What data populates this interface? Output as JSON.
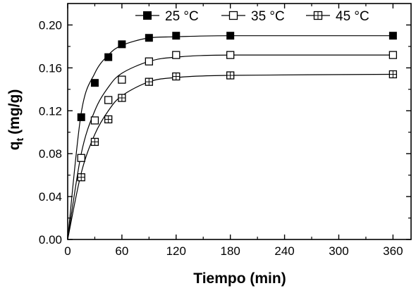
{
  "chart_data": {
    "type": "line",
    "xlabel": "Tiempo (min)",
    "ylabel": {
      "main": "q",
      "sub": "t",
      "unit": "(mg/g)"
    },
    "xlim": [
      0,
      380
    ],
    "ylim": [
      0,
      0.22
    ],
    "xticks": [
      "0",
      "60",
      "120",
      "180",
      "240",
      "300",
      "360"
    ],
    "yticks": [
      "0.00",
      "0.04",
      "0.08",
      "0.12",
      "0.16",
      "0.20"
    ],
    "xtick_values": [
      0,
      60,
      120,
      180,
      240,
      300,
      360
    ],
    "ytick_values": [
      0,
      0.04,
      0.08,
      0.12,
      0.16,
      0.2
    ],
    "grid": false,
    "legend_position": "top-right",
    "series": [
      {
        "name": "25 °C",
        "marker": "filled-square",
        "points": [
          [
            0,
            0
          ],
          [
            15,
            0.114
          ],
          [
            30,
            0.146
          ],
          [
            45,
            0.17
          ],
          [
            60,
            0.182
          ],
          [
            90,
            0.188
          ],
          [
            120,
            0.19
          ],
          [
            180,
            0.19
          ],
          [
            360,
            0.19
          ]
        ],
        "fit": [
          [
            0,
            0
          ],
          [
            15,
            0.118
          ],
          [
            30,
            0.155
          ],
          [
            45,
            0.172
          ],
          [
            60,
            0.181
          ],
          [
            90,
            0.188
          ],
          [
            120,
            0.189
          ],
          [
            180,
            0.19
          ],
          [
            360,
            0.19
          ]
        ]
      },
      {
        "name": "35 °C",
        "marker": "open-square",
        "points": [
          [
            0,
            0
          ],
          [
            15,
            0.076
          ],
          [
            30,
            0.111
          ],
          [
            45,
            0.13
          ],
          [
            60,
            0.149
          ],
          [
            90,
            0.166
          ],
          [
            120,
            0.172
          ],
          [
            180,
            0.172
          ],
          [
            360,
            0.172
          ]
        ],
        "fit": [
          [
            0,
            0
          ],
          [
            15,
            0.08
          ],
          [
            30,
            0.12
          ],
          [
            45,
            0.142
          ],
          [
            60,
            0.155
          ],
          [
            90,
            0.166
          ],
          [
            120,
            0.17
          ],
          [
            180,
            0.172
          ],
          [
            360,
            0.172
          ]
        ]
      },
      {
        "name": "45 °C",
        "marker": "crossed-square",
        "points": [
          [
            0,
            0
          ],
          [
            15,
            0.058
          ],
          [
            30,
            0.091
          ],
          [
            45,
            0.112
          ],
          [
            60,
            0.132
          ],
          [
            90,
            0.147
          ],
          [
            120,
            0.152
          ],
          [
            180,
            0.153
          ],
          [
            360,
            0.154
          ]
        ],
        "fit": [
          [
            0,
            0
          ],
          [
            15,
            0.062
          ],
          [
            30,
            0.098
          ],
          [
            45,
            0.12
          ],
          [
            60,
            0.134
          ],
          [
            90,
            0.147
          ],
          [
            120,
            0.151
          ],
          [
            180,
            0.153
          ],
          [
            360,
            0.154
          ]
        ]
      }
    ]
  }
}
